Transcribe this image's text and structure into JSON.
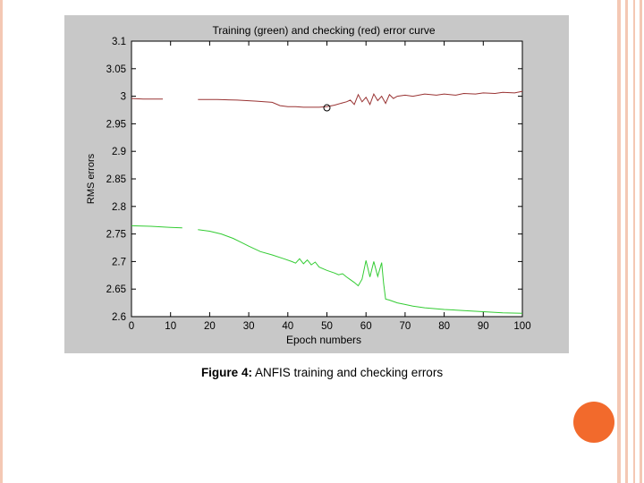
{
  "colors": {
    "panel_bg": "#c8c8c8",
    "plot_bg": "#ffffff",
    "training": "#33cc33",
    "checking": "#993333",
    "dot": "#f26a2c",
    "stripe": "#f4c8b4"
  },
  "caption": {
    "label": "Figure 4:",
    "text": "ANFIS training and checking errors"
  },
  "chart_data": {
    "type": "line",
    "title": "Training (green) and checking (red) error curve",
    "xlabel": "Epoch numbers",
    "ylabel": "RMS errors",
    "xlim": [
      0,
      100
    ],
    "ylim": [
      2.6,
      3.1
    ],
    "x_ticks": [
      0,
      10,
      20,
      30,
      40,
      50,
      60,
      70,
      80,
      90,
      100
    ],
    "x_tick_labels": [
      "0",
      "10",
      "20",
      "30",
      "40",
      "50",
      "60",
      "70",
      "80",
      "90",
      "100"
    ],
    "y_ticks": [
      2.6,
      2.65,
      2.7,
      2.75,
      2.8,
      2.85,
      2.9,
      2.95,
      3.0,
      3.05,
      3.1
    ],
    "y_tick_labels": [
      "2.6",
      "2.65",
      "2.7",
      "2.75",
      "2.8",
      "2.85",
      "2.9",
      "2.95",
      "3",
      "3.05",
      "3.1"
    ],
    "grid": false,
    "series": [
      {
        "color": "#33cc33",
        "segments": [
          [
            [
              0,
              2.765
            ],
            [
              5,
              2.764
            ],
            [
              10,
              2.762
            ],
            [
              13,
              2.761
            ]
          ],
          [
            [
              17,
              2.758
            ],
            [
              20,
              2.755
            ],
            [
              23,
              2.75
            ],
            [
              26,
              2.742
            ],
            [
              28,
              2.735
            ],
            [
              30,
              2.728
            ],
            [
              33,
              2.718
            ],
            [
              36,
              2.712
            ],
            [
              39,
              2.705
            ],
            [
              41,
              2.7
            ],
            [
              42,
              2.697
            ],
            [
              43,
              2.705
            ],
            [
              44,
              2.696
            ],
            [
              45,
              2.703
            ],
            [
              46,
              2.694
            ],
            [
              47,
              2.699
            ],
            [
              48,
              2.69
            ],
            [
              50,
              2.684
            ],
            [
              52,
              2.679
            ],
            [
              53,
              2.676
            ],
            [
              54,
              2.678
            ],
            [
              55,
              2.672
            ],
            [
              56,
              2.667
            ],
            [
              57,
              2.662
            ],
            [
              58,
              2.656
            ],
            [
              59,
              2.668
            ],
            [
              60,
              2.702
            ],
            [
              61,
              2.672
            ],
            [
              62,
              2.7
            ],
            [
              63,
              2.673
            ],
            [
              64,
              2.698
            ],
            [
              64.5,
              2.66
            ],
            [
              65,
              2.632
            ],
            [
              66,
              2.63
            ],
            [
              68,
              2.625
            ],
            [
              70,
              2.622
            ],
            [
              72,
              2.619
            ],
            [
              75,
              2.616
            ],
            [
              80,
              2.613
            ],
            [
              85,
              2.611
            ],
            [
              90,
              2.609
            ],
            [
              95,
              2.607
            ],
            [
              100,
              2.606
            ]
          ]
        ]
      },
      {
        "color": "#993333",
        "segments": [
          [
            [
              0,
              2.996
            ],
            [
              3,
              2.995
            ],
            [
              8,
              2.995
            ]
          ],
          [
            [
              17,
              2.994
            ],
            [
              22,
              2.994
            ],
            [
              27,
              2.993
            ],
            [
              32,
              2.991
            ],
            [
              36,
              2.989
            ],
            [
              38,
              2.983
            ],
            [
              40,
              2.981
            ],
            [
              42,
              2.981
            ],
            [
              44,
              2.98
            ],
            [
              46,
              2.98
            ],
            [
              48,
              2.98
            ],
            [
              50,
              2.981
            ],
            [
              52,
              2.984
            ],
            [
              54,
              2.988
            ],
            [
              55,
              2.99
            ],
            [
              56,
              2.993
            ],
            [
              57,
              2.985
            ],
            [
              58,
              3.003
            ],
            [
              59,
              2.99
            ],
            [
              60,
              2.998
            ],
            [
              61,
              2.985
            ],
            [
              62,
              3.004
            ],
            [
              63,
              2.992
            ],
            [
              64,
              3.0
            ],
            [
              65,
              2.987
            ],
            [
              66,
              3.003
            ],
            [
              67,
              2.996
            ],
            [
              68,
              3.0
            ],
            [
              70,
              3.002
            ],
            [
              72,
              3.0
            ],
            [
              75,
              3.004
            ],
            [
              78,
              3.002
            ],
            [
              80,
              3.004
            ],
            [
              83,
              3.002
            ],
            [
              85,
              3.005
            ],
            [
              88,
              3.004
            ],
            [
              90,
              3.006
            ],
            [
              93,
              3.005
            ],
            [
              95,
              3.007
            ],
            [
              98,
              3.006
            ],
            [
              100,
              3.009
            ]
          ]
        ]
      }
    ],
    "marker": {
      "x": 50,
      "y": 2.979,
      "shape": "circle"
    }
  }
}
